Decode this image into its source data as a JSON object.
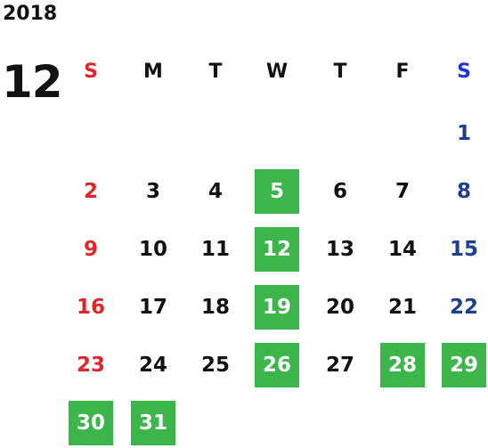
{
  "calendar": {
    "year": "2018",
    "month": "12",
    "weekdays": [
      "S",
      "M",
      "T",
      "W",
      "T",
      "F",
      "S"
    ],
    "weeks": [
      [
        "",
        "",
        "",
        "",
        "",
        "",
        "1"
      ],
      [
        "2",
        "3",
        "4",
        "5",
        "6",
        "7",
        "8"
      ],
      [
        "9",
        "10",
        "11",
        "12",
        "13",
        "14",
        "15"
      ],
      [
        "16",
        "17",
        "18",
        "19",
        "20",
        "21",
        "22"
      ],
      [
        "23",
        "24",
        "25",
        "26",
        "27",
        "28",
        "29"
      ],
      [
        "30",
        "31",
        "",
        "",
        "",
        "",
        ""
      ]
    ],
    "highlighted_days": [
      "5",
      "12",
      "19",
      "26",
      "28",
      "29",
      "30",
      "31"
    ],
    "colors": {
      "sunday": "#e0262b",
      "saturday": "#1d3f8f",
      "saturday_header": "#1d35d8",
      "highlight_background": "#3cb54a",
      "highlight_text": "#ffffff",
      "default_text": "#111111"
    }
  }
}
